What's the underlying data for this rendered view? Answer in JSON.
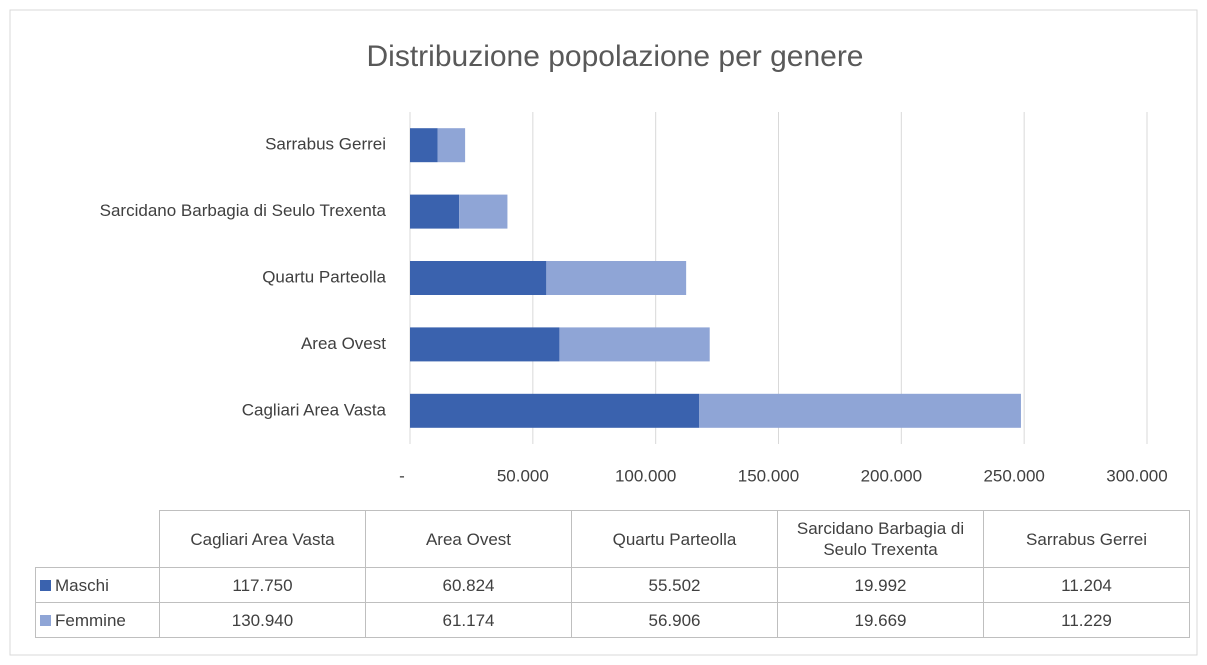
{
  "chart_data": {
    "type": "stacked_barh",
    "title": "Distribuzione popolazione per genere",
    "categories": [
      "Cagliari Area Vasta",
      "Area Ovest",
      "Quartu Parteolla",
      "Sarcidano Barbagia di Seulo Trexenta",
      "Sarrabus Gerrei"
    ],
    "series": [
      {
        "name": "Maschi",
        "color": "#3a62ae",
        "values": [
          117750,
          60824,
          55502,
          19992,
          11204
        ],
        "value_labels": [
          "117.750",
          "60.824",
          "55.502",
          "19.992",
          "11.204"
        ]
      },
      {
        "name": "Femmine",
        "color": "#8fa5d6",
        "values": [
          130940,
          61174,
          56906,
          19669,
          11229
        ],
        "value_labels": [
          "130.940",
          "61.174",
          "56.906",
          "19.669",
          "11.229"
        ]
      }
    ],
    "xlim": [
      0,
      300000
    ],
    "xticks": [
      {
        "value": 0,
        "label": "-"
      },
      {
        "value": 50000,
        "label": "50.000"
      },
      {
        "value": 100000,
        "label": "100.000"
      },
      {
        "value": 150000,
        "label": "150.000"
      },
      {
        "value": 200000,
        "label": "200.000"
      },
      {
        "value": 250000,
        "label": "250.000"
      },
      {
        "value": 300000,
        "label": "300.000"
      }
    ],
    "grid": true
  }
}
